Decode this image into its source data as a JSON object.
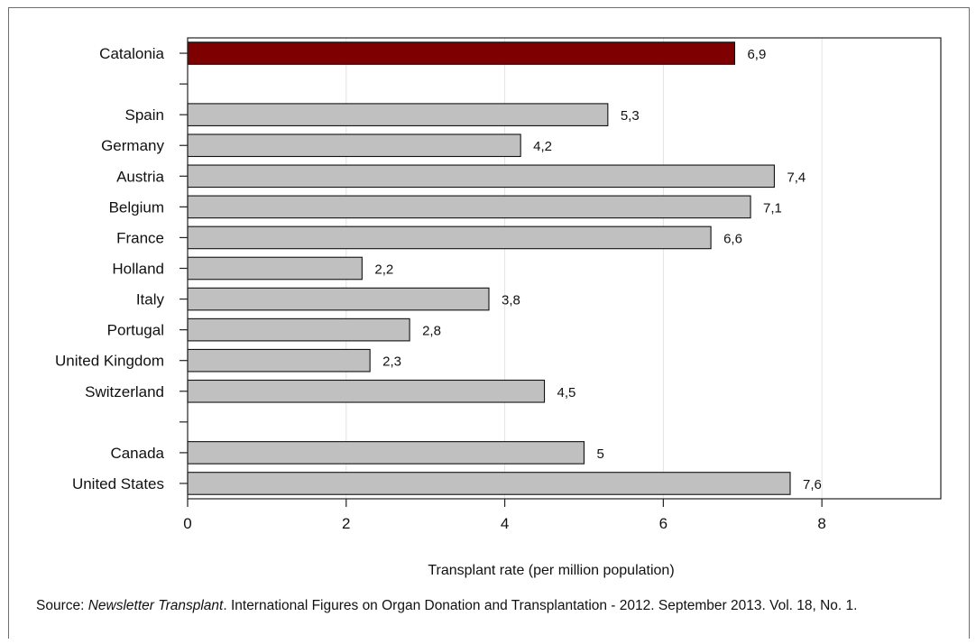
{
  "chart_data": {
    "type": "bar",
    "orientation": "horizontal",
    "categories": [
      "Catalonia",
      "",
      "Spain",
      "Germany",
      "Austria",
      "Belgium",
      "France",
      "Holland",
      "Italy",
      "Portugal",
      "United Kingdom",
      "Switzerland",
      "",
      "Canada",
      "United States"
    ],
    "values": [
      6.9,
      null,
      5.3,
      4.2,
      7.4,
      7.1,
      6.6,
      2.2,
      3.8,
      2.8,
      2.3,
      4.5,
      null,
      5,
      7.6
    ],
    "data_labels": [
      "6,9",
      "",
      "5,3",
      "4,2",
      "7,4",
      "7,1",
      "6,6",
      "2,2",
      "3,8",
      "2,8",
      "2,3",
      "4,5",
      "",
      "5",
      "7,6"
    ],
    "highlight": "Catalonia",
    "colors": {
      "highlight": "#7f0000",
      "default": "#c0c0c0",
      "bar_stroke": "#111111",
      "grid": "#e3e3e3"
    },
    "xlabel": "Transplant rate (per million population)",
    "xlim": [
      0,
      9.5
    ],
    "xticks": [
      0,
      2,
      4,
      6,
      8
    ],
    "grid": true
  },
  "source": {
    "prefix": "Source: ",
    "italic": "Newsletter Transplant",
    "rest": ". International Figures on Organ Donation and Transplantation - 2012. September 2013. Vol. 18, No. 1."
  }
}
